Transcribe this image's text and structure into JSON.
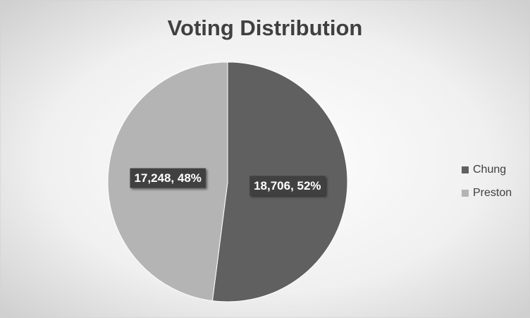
{
  "chart_data": {
    "type": "pie",
    "title": "Voting Distribution",
    "categories": [
      "Chung",
      "Preston"
    ],
    "values": [
      18706,
      17248
    ],
    "value_labels": [
      "18,706, 52%",
      "17,248, 48%"
    ],
    "colors": [
      "#606060",
      "#b4b4b4"
    ],
    "legend": "right"
  }
}
